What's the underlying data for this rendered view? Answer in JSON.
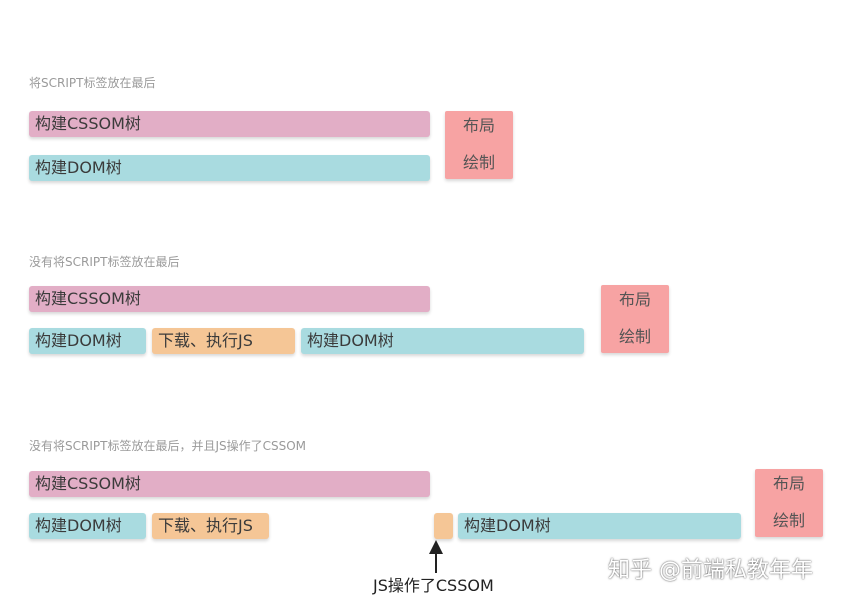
{
  "sections": [
    {
      "caption": "将SCRIPT标签放在最后",
      "cssom_bar": "构建CSSOM树",
      "dom_bars": [
        "构建DOM树"
      ],
      "layout_label": "布局",
      "paint_label": "绘制"
    },
    {
      "caption": "没有将SCRIPT标签放在最后",
      "cssom_bar": "构建CSSOM树",
      "dom_bars": [
        "构建DOM树",
        "下载、执行JS",
        "构建DOM树"
      ],
      "layout_label": "布局",
      "paint_label": "绘制"
    },
    {
      "caption": "没有将SCRIPT标签放在最后，并且JS操作了CSSOM",
      "cssom_bar": "构建CSSOM树",
      "dom_bars": [
        "构建DOM树",
        "下载、执行JS",
        "",
        "构建DOM树"
      ],
      "layout_label": "布局",
      "paint_label": "绘制"
    }
  ],
  "annotation": "JS操作了CSSOM",
  "watermark": "知乎 @前端私教年年",
  "colors": {
    "cssom": "#e2aec6",
    "dom": "#a9dbe0",
    "js": "#f5c696",
    "render": "#f7a3a3",
    "caption": "#9a9a9a"
  }
}
